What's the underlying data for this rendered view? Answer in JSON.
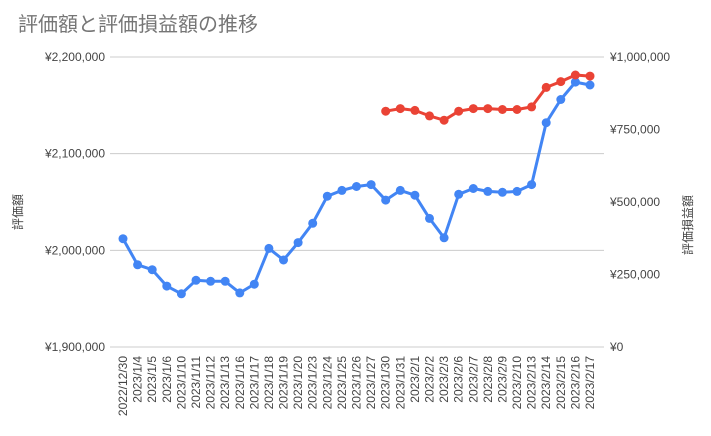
{
  "chart_data": {
    "type": "line",
    "title": "評価額と評価損益額の推移",
    "legend": "none",
    "grid": true,
    "x_tick_labels": [
      "2022/12/30",
      "2023/1/4",
      "2023/1/5",
      "2023/1/6",
      "2023/1/10",
      "2023/1/11",
      "2023/1/12",
      "2023/1/13",
      "2023/1/16",
      "2023/1/17",
      "2023/1/18",
      "2023/1/19",
      "2023/1/20",
      "2023/1/23",
      "2023/1/24",
      "2023/1/25",
      "2023/1/26",
      "2023/1/27",
      "2023/1/30",
      "2023/1/31",
      "2023/2/1",
      "2023/2/2",
      "2023/2/3",
      "2023/2/6",
      "2023/2/7",
      "2023/2/8",
      "2023/2/9",
      "2023/2/10",
      "2023/2/13",
      "2023/2/14",
      "2023/2/15",
      "2023/2/16",
      "2023/2/17"
    ],
    "left_axis": {
      "title": "評価額",
      "min": 1900000,
      "max": 2200000,
      "tick_values": [
        1900000,
        2000000,
        2100000,
        2200000
      ],
      "tick_labels": [
        "¥1,900,000",
        "¥2,000,000",
        "¥2,100,000",
        "¥2,200,000"
      ]
    },
    "right_axis": {
      "title": "評価損益額",
      "min": 0,
      "max": 1000000,
      "tick_values": [
        0,
        250000,
        500000,
        750000,
        1000000
      ],
      "tick_labels": [
        "¥0",
        "¥250,000",
        "¥500,000",
        "¥750,000",
        "¥1,000,000"
      ]
    },
    "series": [
      {
        "name": "評価額",
        "axis": "left",
        "color": "#4285F4",
        "values": [
          2012000,
          1985000,
          1980000,
          1963000,
          1955000,
          1969000,
          1968000,
          1968000,
          1956000,
          1965000,
          2002000,
          1990000,
          2008000,
          2028000,
          2056000,
          2062000,
          2066000,
          2068000,
          2052000,
          2062000,
          2057000,
          2033000,
          2013000,
          2058000,
          2064000,
          2061000,
          2060000,
          2061000,
          2068000,
          2132000,
          2156000,
          2174000,
          2171000
        ]
      },
      {
        "name": "評価損益額",
        "axis": "right",
        "color": "#EA4335",
        "values": [
          null,
          null,
          null,
          null,
          null,
          null,
          null,
          null,
          null,
          null,
          null,
          null,
          null,
          null,
          null,
          null,
          null,
          null,
          813000,
          822000,
          816000,
          797000,
          782000,
          813000,
          822000,
          822000,
          819000,
          819000,
          828000,
          895000,
          915000,
          938000,
          934000
        ]
      }
    ],
    "colors": {
      "blue_series": "#4285F4",
      "red_series": "#EA4335",
      "gridline": "#cccccc",
      "title_text": "#757575",
      "tick_text": "#444444",
      "background": "#ffffff"
    }
  }
}
